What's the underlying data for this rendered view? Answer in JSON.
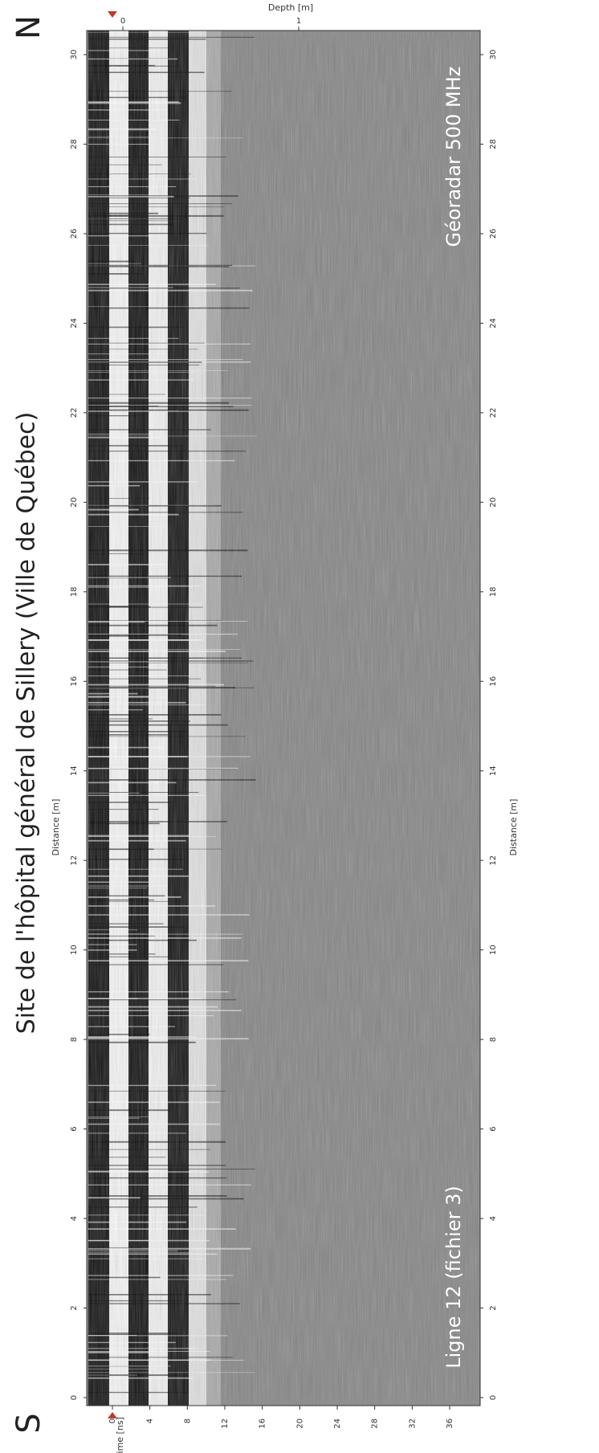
{
  "title": "Site de l'hôpital général de Sillery (Ville de Québec)",
  "direction_start": "S",
  "direction_end": "N",
  "line_label": "Ligne 12 (fichier 3)",
  "radar_label": "Géoradar 500 MHz",
  "distance_axis": {
    "label": "Distance [m]",
    "ticks": [
      0,
      2,
      4,
      6,
      8,
      10,
      12,
      14,
      16,
      18,
      20,
      22,
      24,
      26,
      28,
      30
    ]
  },
  "time_axis": {
    "label": "Time [ns]",
    "ticks": [
      0,
      4,
      8,
      12,
      16,
      20,
      24,
      28,
      32,
      36
    ]
  },
  "depth_axis": {
    "label": "Depth [m]",
    "ticks": [
      0,
      1
    ]
  }
}
